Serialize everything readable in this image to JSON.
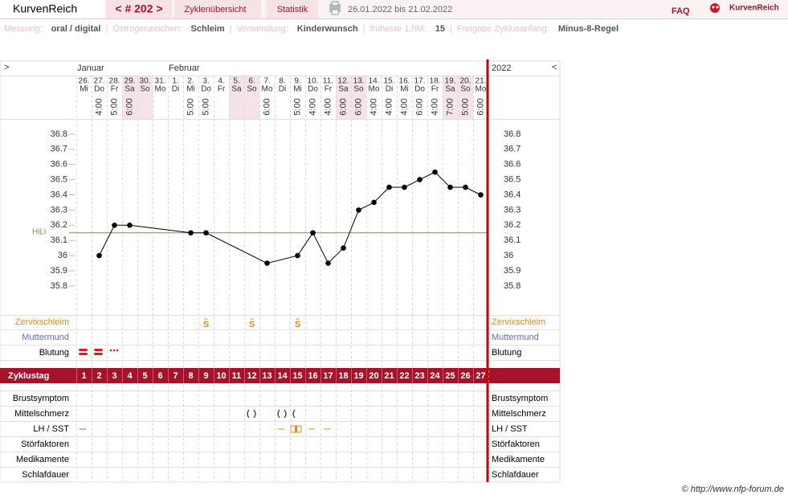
{
  "header": {
    "app": "KurvenReich",
    "cycle": "< # 202 >",
    "tabs": [
      "Zyklenübersicht",
      "Statistik"
    ],
    "range": "26.01.2022 bis 21.02.2022",
    "faq": "FAQ",
    "logo": "KurvenReich"
  },
  "settings": [
    {
      "label": "Messung:",
      "value": "oral / digital"
    },
    {
      "label": "Östrogenzeichen:",
      "value": "Schleim"
    },
    {
      "label": "Verwendung:",
      "value": "Kinderwunsch"
    },
    {
      "label": "früheste 1.hM:",
      "value": "15"
    },
    {
      "label": "Freigabe Zyklusanfang:",
      "value": "Minus-8-Regel"
    }
  ],
  "separator": "|",
  "footer": "© http://www.nfp-forum.de",
  "chart_data": {
    "type": "line",
    "nav_left": ">",
    "nav_right": "<",
    "year": "2022",
    "months": [
      "Januar",
      "Februar"
    ],
    "days": [
      "26.",
      "27.",
      "28.",
      "29.",
      "30.",
      "31.",
      "1.",
      "2.",
      "3.",
      "4.",
      "5.",
      "6.",
      "7.",
      "8.",
      "9.",
      "10.",
      "11.",
      "12.",
      "13.",
      "14.",
      "15.",
      "16.",
      "17.",
      "18.",
      "19.",
      "20.",
      "21."
    ],
    "weekdays": [
      "Mi",
      "Do",
      "Fr",
      "Sa",
      "So",
      "Mo",
      "Di",
      "Mi",
      "Do",
      "Fr",
      "Sa",
      "So",
      "Mo",
      "Di",
      "Mi",
      "Do",
      "Fr",
      "Sa",
      "So",
      "Mo",
      "Di",
      "Mi",
      "Do",
      "Fr",
      "Sa",
      "So",
      "Mo"
    ],
    "times": [
      null,
      "4:00",
      "5:00",
      "6:00",
      null,
      null,
      null,
      "5:00",
      "5:00",
      null,
      null,
      null,
      "6:00",
      null,
      "5:00",
      "4:00",
      "4:00",
      "6:00",
      "6:00",
      "4:00",
      "4:00",
      "4:00",
      "6:00",
      "4:00",
      "7:00",
      "5:00",
      "6:00"
    ],
    "series": [
      {
        "name": "Temperatur",
        "color": "#000000",
        "days": [
          "27.",
          "28.",
          "29.",
          "2.",
          "3.",
          "7.",
          "9.",
          "10.",
          "11.",
          "12.",
          "13.",
          "14.",
          "15.",
          "16.",
          "17.",
          "18.",
          "19.",
          "20.",
          "21."
        ],
        "values": [
          36.0,
          36.2,
          36.2,
          36.15,
          36.15,
          35.95,
          36.0,
          36.15,
          35.95,
          36.05,
          36.3,
          36.35,
          36.45,
          36.45,
          36.5,
          36.55,
          36.45,
          36.45,
          36.4
        ]
      }
    ],
    "ylim": [
      35.6,
      36.9
    ],
    "yticks": [
      35.8,
      35.9,
      36,
      36.1,
      36.2,
      36.3,
      36.4,
      36.5,
      36.6,
      36.7,
      36.8
    ],
    "hili": {
      "label": "HiLi",
      "value": 36.15,
      "color": "#6a9a3a"
    },
    "upper_rows": [
      {
        "label": "Zervixschleim",
        "color": "#e08a1e"
      },
      {
        "label": "Muttermund",
        "color": "#5a6fc8"
      },
      {
        "label": "Blutung",
        "color": "#000000"
      }
    ],
    "cervical_mucus": [
      null,
      null,
      null,
      null,
      null,
      null,
      null,
      null,
      "S",
      null,
      null,
      "S",
      null,
      null,
      "S",
      null,
      null,
      null,
      null,
      null,
      null,
      null,
      null,
      null,
      null,
      null,
      null
    ],
    "cycle_day_label": "Zyklustag",
    "cycle_days": [
      1,
      2,
      3,
      4,
      5,
      6,
      7,
      8,
      9,
      10,
      11,
      12,
      13,
      14,
      15,
      16,
      17,
      18,
      19,
      20,
      21,
      22,
      23,
      24,
      25,
      26,
      27
    ],
    "lower_rows": [
      "Brustsymptom",
      "Mittelschmerz",
      "LH / SST",
      "Störfaktoren",
      "Medikamente",
      "Schlafdauer"
    ]
  }
}
